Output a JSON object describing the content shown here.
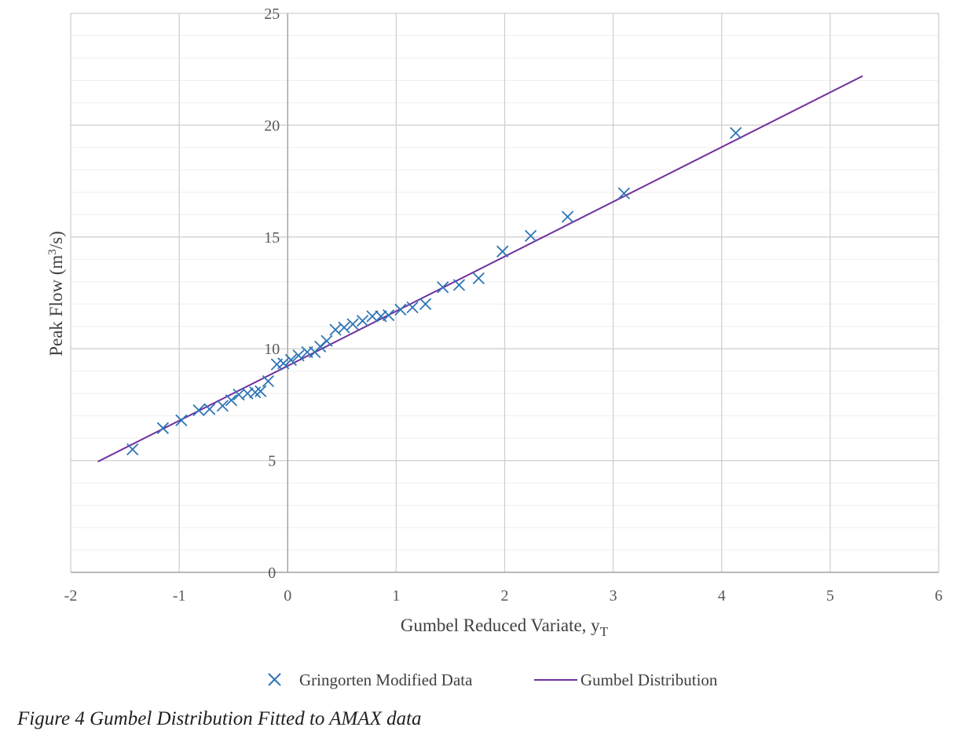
{
  "caption": "Figure 4 Gumbel Distribution Fitted to AMAX data",
  "chart_data": {
    "type": "scatter",
    "xlabel": "Gumbel Reduced Variate, y",
    "xlabel_subscript": "T",
    "ylabel": "Peak Flow (m",
    "ylabel_superscript": "3",
    "ylabel_end": "/s)",
    "xlim": [
      -2,
      6
    ],
    "ylim": [
      0,
      25
    ],
    "x_ticks": [
      "-2",
      "-1",
      "0",
      "1",
      "2",
      "3",
      "4",
      "5",
      "6"
    ],
    "y_ticks": [
      "0",
      "5",
      "10",
      "15",
      "20",
      "25"
    ],
    "grid": true,
    "minor_grid": true,
    "legend_position": "bottom",
    "series": [
      {
        "name": "Gringorten Modified Data",
        "kind": "scatter",
        "marker": "x",
        "color": "#2e75b6",
        "points": [
          [
            -1.43,
            5.5
          ],
          [
            -1.15,
            6.45
          ],
          [
            -0.98,
            6.8
          ],
          [
            -0.82,
            7.25
          ],
          [
            -0.72,
            7.3
          ],
          [
            -0.6,
            7.45
          ],
          [
            -0.52,
            7.7
          ],
          [
            -0.45,
            7.95
          ],
          [
            -0.37,
            8.0
          ],
          [
            -0.3,
            8.05
          ],
          [
            -0.25,
            8.1
          ],
          [
            -0.18,
            8.55
          ],
          [
            -0.1,
            9.3
          ],
          [
            -0.04,
            9.35
          ],
          [
            0.03,
            9.5
          ],
          [
            0.1,
            9.7
          ],
          [
            0.18,
            9.85
          ],
          [
            0.25,
            9.85
          ],
          [
            0.3,
            10.1
          ],
          [
            0.36,
            10.35
          ],
          [
            0.44,
            10.85
          ],
          [
            0.52,
            10.95
          ],
          [
            0.6,
            11.1
          ],
          [
            0.69,
            11.25
          ],
          [
            0.78,
            11.45
          ],
          [
            0.86,
            11.45
          ],
          [
            0.93,
            11.5
          ],
          [
            1.04,
            11.75
          ],
          [
            1.15,
            11.85
          ],
          [
            1.27,
            12.0
          ],
          [
            1.43,
            12.75
          ],
          [
            1.58,
            12.85
          ],
          [
            1.76,
            13.15
          ],
          [
            1.98,
            14.35
          ],
          [
            2.24,
            15.05
          ],
          [
            2.58,
            15.9
          ],
          [
            3.1,
            16.95
          ],
          [
            4.13,
            19.65
          ]
        ]
      },
      {
        "name": "Gumbel Distribution",
        "kind": "line",
        "color": "#7030a0",
        "points": [
          [
            -1.75,
            4.95
          ],
          [
            5.3,
            22.2
          ]
        ]
      }
    ]
  }
}
